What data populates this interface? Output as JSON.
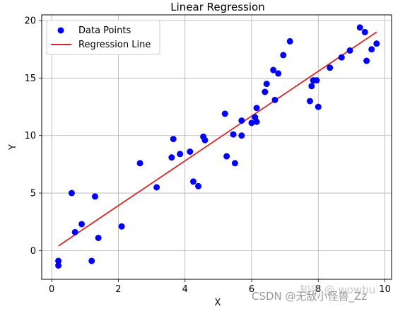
{
  "chart_data": {
    "type": "scatter",
    "title": "Linear Regression",
    "xlabel": "X",
    "ylabel": "Y",
    "xlim": [
      -0.3,
      10.2
    ],
    "ylim": [
      -2.5,
      20.5
    ],
    "xticks": [
      0,
      2,
      4,
      6,
      8,
      10
    ],
    "yticks": [
      0,
      5,
      10,
      15,
      20
    ],
    "grid": true,
    "legend_position": "top-left",
    "series": [
      {
        "name": "Data Points",
        "kind": "scatter",
        "color": "#0000ff",
        "points": [
          [
            0.2,
            -0.9
          ],
          [
            0.2,
            -1.3
          ],
          [
            0.6,
            5.0
          ],
          [
            0.7,
            1.6
          ],
          [
            0.9,
            2.3
          ],
          [
            1.2,
            -0.9
          ],
          [
            1.3,
            4.7
          ],
          [
            1.4,
            1.1
          ],
          [
            2.1,
            2.1
          ],
          [
            2.65,
            7.6
          ],
          [
            3.15,
            5.5
          ],
          [
            3.6,
            8.1
          ],
          [
            3.65,
            9.7
          ],
          [
            3.85,
            8.4
          ],
          [
            4.15,
            8.6
          ],
          [
            4.25,
            6.0
          ],
          [
            4.4,
            5.6
          ],
          [
            4.55,
            9.9
          ],
          [
            4.6,
            9.6
          ],
          [
            5.2,
            11.9
          ],
          [
            5.25,
            8.2
          ],
          [
            5.45,
            10.1
          ],
          [
            5.5,
            7.6
          ],
          [
            5.7,
            10.0
          ],
          [
            5.7,
            11.3
          ],
          [
            6.0,
            11.1
          ],
          [
            6.1,
            11.6
          ],
          [
            6.15,
            12.4
          ],
          [
            6.15,
            11.2
          ],
          [
            6.4,
            13.8
          ],
          [
            6.45,
            14.5
          ],
          [
            6.65,
            15.7
          ],
          [
            6.7,
            13.1
          ],
          [
            6.8,
            15.4
          ],
          [
            6.95,
            17.0
          ],
          [
            7.15,
            18.2
          ],
          [
            7.75,
            13.0
          ],
          [
            7.8,
            14.3
          ],
          [
            7.85,
            14.8
          ],
          [
            7.95,
            14.8
          ],
          [
            8.0,
            12.5
          ],
          [
            8.35,
            15.9
          ],
          [
            8.7,
            16.8
          ],
          [
            8.95,
            17.4
          ],
          [
            9.25,
            19.4
          ],
          [
            9.4,
            19.0
          ],
          [
            9.45,
            16.5
          ],
          [
            9.6,
            17.5
          ],
          [
            9.75,
            18.0
          ]
        ]
      },
      {
        "name": "Regression Line",
        "kind": "line",
        "color": "#d62728",
        "x": [
          0.2,
          9.75
        ],
        "y": [
          0.4,
          19.0
        ]
      }
    ]
  },
  "watermark": {
    "text": "CSDN @无敌小怪兽_Zz",
    "faint_text": "知乎 @ wowbu"
  }
}
